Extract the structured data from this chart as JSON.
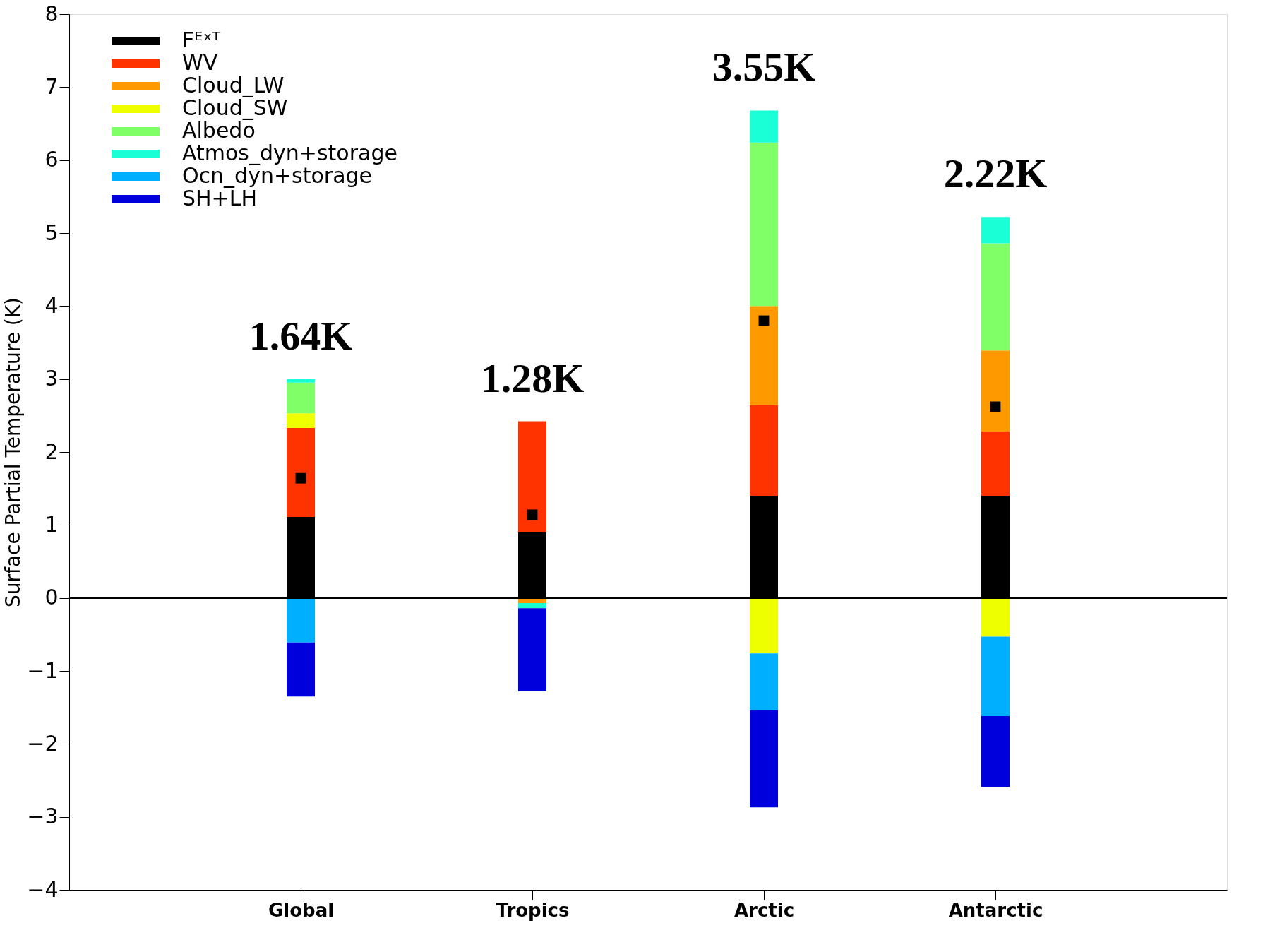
{
  "chart_data": {
    "type": "bar",
    "stacked": true,
    "ylabel": "Surface Partial Temperature (K)",
    "categories": [
      "Global",
      "Tropics",
      "Arctic",
      "Antarctic"
    ],
    "series": [
      {
        "name": "Fᴱˣᵀ",
        "color": "#000000",
        "values": [
          1.11,
          0.9,
          1.4,
          1.4
        ]
      },
      {
        "name": "WV",
        "color": "#ff3300",
        "values": [
          1.22,
          1.52,
          1.24,
          0.88
        ]
      },
      {
        "name": "Cloud_LW",
        "color": "#ff9900",
        "values": [
          0,
          -0.07,
          1.36,
          1.11
        ]
      },
      {
        "name": "Cloud_SW",
        "color": "#eeff00",
        "values": [
          0.2,
          0,
          -0.76,
          -0.53
        ]
      },
      {
        "name": "Albedo",
        "color": "#80ff66",
        "values": [
          0.42,
          0,
          2.24,
          1.47
        ]
      },
      {
        "name": "Atmos_dyn+storage",
        "color": "#1affd5",
        "values": [
          0.05,
          -0.07,
          0.44,
          0.36
        ]
      },
      {
        "name": "Ocn_dyn+storage",
        "color": "#00b0ff",
        "values": [
          -0.61,
          0,
          -0.78,
          -1.09
        ]
      },
      {
        "name": "SH+LH",
        "color": "#0000dd",
        "values": [
          -0.74,
          -1.14,
          -1.33,
          -0.97
        ]
      },
      {
        "type": "scatter",
        "marker": "square",
        "color": "#000000",
        "x": [
          "Global",
          "Tropics",
          "Arctic",
          "Antarctic"
        ],
        "values": [
          1.64,
          1.14,
          3.8,
          2.62
        ]
      }
    ],
    "ylim": [
      -4,
      8
    ],
    "yticks": [
      -4,
      -3,
      -2,
      -1,
      0,
      1,
      2,
      3,
      4,
      5,
      6,
      7,
      8
    ],
    "ref_lines": [
      {
        "axis": "y",
        "value": 0,
        "color": "#000000"
      }
    ],
    "annotations": [
      "1.64K",
      "1.28K",
      "3.55K",
      "2.22K"
    ],
    "legend": "top left",
    "grid": false
  }
}
